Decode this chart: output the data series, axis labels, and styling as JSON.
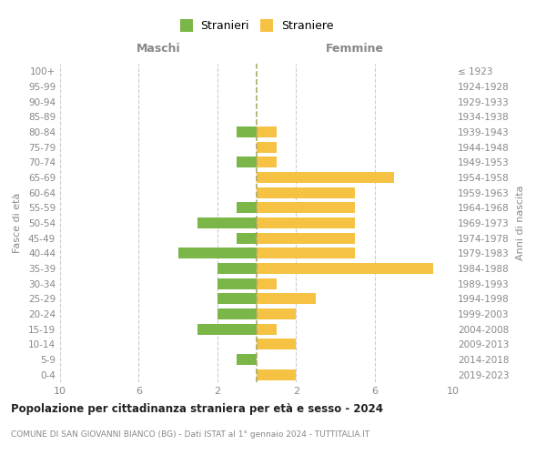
{
  "age_groups": [
    "100+",
    "95-99",
    "90-94",
    "85-89",
    "80-84",
    "75-79",
    "70-74",
    "65-69",
    "60-64",
    "55-59",
    "50-54",
    "45-49",
    "40-44",
    "35-39",
    "30-34",
    "25-29",
    "20-24",
    "15-19",
    "10-14",
    "5-9",
    "0-4"
  ],
  "birth_years": [
    "≤ 1923",
    "1924-1928",
    "1929-1933",
    "1934-1938",
    "1939-1943",
    "1944-1948",
    "1949-1953",
    "1954-1958",
    "1959-1963",
    "1964-1968",
    "1969-1973",
    "1974-1978",
    "1979-1983",
    "1984-1988",
    "1989-1993",
    "1994-1998",
    "1999-2003",
    "2004-2008",
    "2009-2013",
    "2014-2018",
    "2019-2023"
  ],
  "maschi": [
    0,
    0,
    0,
    0,
    1,
    0,
    1,
    0,
    0,
    1,
    3,
    1,
    4,
    2,
    2,
    2,
    2,
    3,
    0,
    1,
    0
  ],
  "femmine": [
    0,
    0,
    0,
    0,
    1,
    1,
    1,
    7,
    5,
    5,
    5,
    5,
    5,
    9,
    1,
    3,
    2,
    1,
    2,
    0,
    2
  ],
  "stranieri_color": "#7ab648",
  "straniere_color": "#f5c243",
  "stranieri_label": "Stranieri",
  "straniere_label": "Straniere",
  "maschi_label": "Maschi",
  "femmine_label": "Femmine",
  "fasce_label": "Fasce di età",
  "anni_label": "Anni di nascita",
  "title": "Popolazione per cittadinanza straniera per età e sesso - 2024",
  "subtitle": "COMUNE DI SAN GIOVANNI BIANCO (BG) - Dati ISTAT al 1° gennaio 2024 - TUTTITALIA.IT",
  "background_color": "#ffffff",
  "grid_color": "#cccccc",
  "center_line_color": "#aaaa66",
  "text_color": "#888888",
  "title_color": "#222222"
}
